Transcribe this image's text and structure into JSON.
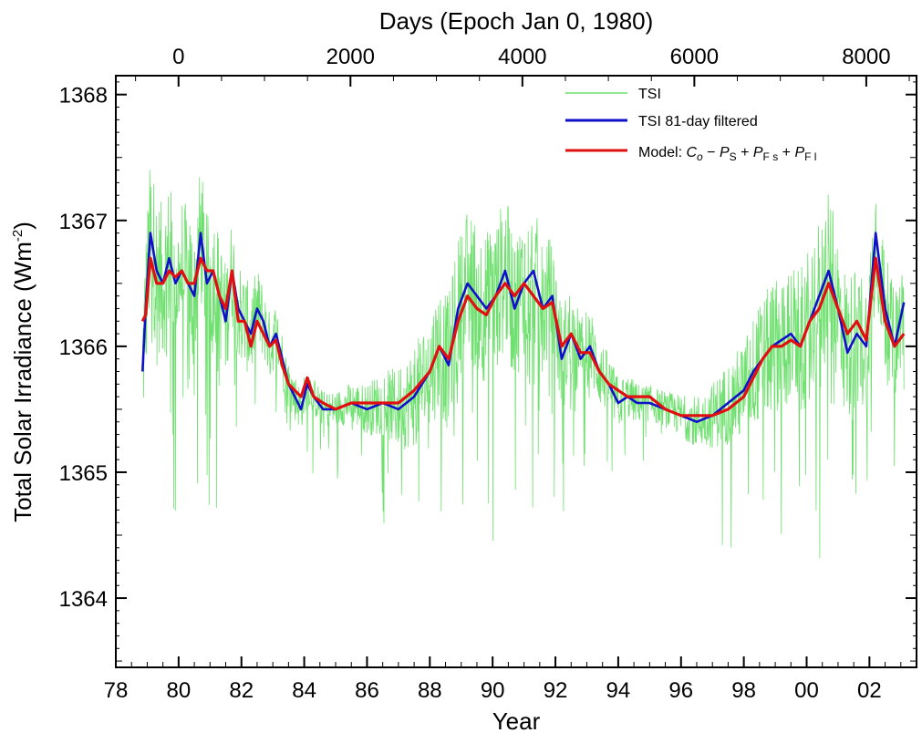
{
  "chart_data": {
    "type": "line",
    "xlabel": "Year",
    "x2label": "Days (Epoch Jan 0, 1980)",
    "ylabel": "Total Solar Irradiance (Wm",
    "ylabel_sup": "-2",
    "ylabel_close": ")",
    "xlim": [
      78.0,
      103.5
    ],
    "ylim": [
      1363.45,
      1368.15
    ],
    "x_ticks": [
      "78",
      "80",
      "82",
      "84",
      "86",
      "88",
      "90",
      "92",
      "94",
      "96",
      "98",
      "00",
      "02"
    ],
    "x_tick_values": [
      78,
      80,
      82,
      84,
      86,
      88,
      90,
      92,
      94,
      96,
      98,
      100,
      102
    ],
    "x2_ticks": [
      "0",
      "2000",
      "4000",
      "6000",
      "8000"
    ],
    "x2_tick_values": [
      0,
      2000,
      4000,
      6000,
      8000
    ],
    "y_ticks": [
      "1364",
      "1365",
      "1366",
      "1367",
      "1368"
    ],
    "y_tick_values": [
      1364,
      1365,
      1366,
      1367,
      1368
    ],
    "legend_position": "top-right",
    "colors": {
      "tsi": "#6fe06f",
      "filtered": "#1010c8",
      "model": "#e01010"
    },
    "legend": {
      "tsi": "TSI",
      "filtered": "TSI 81-day filtered",
      "model_prefix": "Model: ",
      "model_c": "C",
      "model_c_sub": "o",
      "model_minus": " − ",
      "model_p1": "P",
      "model_p1_sub": "S",
      "model_plus1": " + ",
      "model_p2": "P",
      "model_p2_sub": "F s",
      "model_plus2": " + ",
      "model_p3": "P",
      "model_p3_sub": "F l"
    },
    "series": [
      {
        "key": "filtered",
        "x": [
          78.85,
          78.95,
          79.1,
          79.3,
          79.5,
          79.7,
          79.9,
          80.1,
          80.3,
          80.5,
          80.7,
          80.9,
          81.1,
          81.3,
          81.5,
          81.7,
          81.9,
          82.1,
          82.3,
          82.5,
          82.7,
          82.9,
          83.1,
          83.3,
          83.5,
          83.7,
          83.9,
          84.1,
          84.3,
          84.6,
          85.0,
          85.5,
          86.0,
          86.5,
          87.0,
          87.5,
          88.0,
          88.3,
          88.6,
          88.9,
          89.2,
          89.5,
          89.8,
          90.1,
          90.4,
          90.7,
          91.0,
          91.3,
          91.6,
          91.9,
          92.2,
          92.5,
          92.8,
          93.1,
          93.4,
          93.7,
          94.0,
          94.3,
          94.6,
          95.0,
          95.5,
          96.0,
          96.5,
          97.0,
          97.5,
          98.0,
          98.3,
          98.6,
          98.9,
          99.2,
          99.5,
          99.8,
          100.1,
          100.4,
          100.7,
          101.0,
          101.3,
          101.6,
          101.9,
          102.2,
          102.5,
          102.8,
          103.1
        ],
        "y": [
          1365.8,
          1366.3,
          1366.9,
          1366.6,
          1366.5,
          1366.7,
          1366.5,
          1366.6,
          1366.5,
          1366.4,
          1366.9,
          1366.5,
          1366.6,
          1366.4,
          1366.2,
          1366.6,
          1366.3,
          1366.2,
          1366.1,
          1366.3,
          1366.2,
          1366.0,
          1366.1,
          1365.9,
          1365.7,
          1365.6,
          1365.5,
          1365.7,
          1365.6,
          1365.5,
          1365.5,
          1365.55,
          1365.5,
          1365.55,
          1365.5,
          1365.6,
          1365.8,
          1366.0,
          1365.85,
          1366.3,
          1366.5,
          1366.4,
          1366.3,
          1366.4,
          1366.6,
          1366.3,
          1366.5,
          1366.6,
          1366.3,
          1366.4,
          1365.9,
          1366.1,
          1365.9,
          1366.0,
          1365.8,
          1365.7,
          1365.55,
          1365.6,
          1365.55,
          1365.55,
          1365.5,
          1365.45,
          1365.4,
          1365.45,
          1365.55,
          1365.65,
          1365.8,
          1365.9,
          1366.0,
          1366.05,
          1366.1,
          1366.0,
          1366.2,
          1366.4,
          1366.6,
          1366.3,
          1365.95,
          1366.1,
          1366.0,
          1366.9,
          1366.3,
          1366.0,
          1366.35
        ]
      },
      {
        "key": "model",
        "x": [
          78.85,
          78.95,
          79.1,
          79.3,
          79.5,
          79.7,
          79.9,
          80.1,
          80.3,
          80.5,
          80.7,
          80.9,
          81.1,
          81.3,
          81.5,
          81.7,
          81.9,
          82.1,
          82.3,
          82.5,
          82.7,
          82.9,
          83.1,
          83.3,
          83.5,
          83.7,
          83.9,
          84.1,
          84.3,
          84.6,
          85.0,
          85.5,
          86.0,
          86.5,
          87.0,
          87.5,
          88.0,
          88.3,
          88.6,
          88.9,
          89.2,
          89.5,
          89.8,
          90.1,
          90.4,
          90.7,
          91.0,
          91.3,
          91.6,
          91.9,
          92.2,
          92.5,
          92.8,
          93.1,
          93.4,
          93.7,
          94.0,
          94.3,
          94.6,
          95.0,
          95.5,
          96.0,
          96.5,
          97.0,
          97.5,
          98.0,
          98.3,
          98.6,
          98.9,
          99.2,
          99.5,
          99.8,
          100.1,
          100.4,
          100.7,
          101.0,
          101.3,
          101.6,
          101.9,
          102.2,
          102.5,
          102.8,
          103.1
        ],
        "y": [
          1366.2,
          1366.25,
          1366.7,
          1366.5,
          1366.5,
          1366.6,
          1366.55,
          1366.6,
          1366.5,
          1366.5,
          1366.7,
          1366.6,
          1366.6,
          1366.4,
          1366.3,
          1366.6,
          1366.2,
          1366.2,
          1366.0,
          1366.2,
          1366.1,
          1366.0,
          1366.05,
          1365.85,
          1365.7,
          1365.65,
          1365.6,
          1365.75,
          1365.6,
          1365.55,
          1365.5,
          1365.55,
          1365.55,
          1365.55,
          1365.55,
          1365.65,
          1365.8,
          1366.0,
          1365.9,
          1366.2,
          1366.4,
          1366.3,
          1366.25,
          1366.4,
          1366.5,
          1366.4,
          1366.5,
          1366.4,
          1366.3,
          1366.35,
          1366.0,
          1366.1,
          1365.95,
          1365.95,
          1365.8,
          1365.7,
          1365.65,
          1365.6,
          1365.6,
          1365.6,
          1365.5,
          1365.45,
          1365.45,
          1365.45,
          1365.5,
          1365.6,
          1365.75,
          1365.9,
          1366.0,
          1366.0,
          1366.05,
          1366.0,
          1366.2,
          1366.3,
          1366.5,
          1366.3,
          1366.1,
          1366.2,
          1366.05,
          1366.7,
          1366.2,
          1366.0,
          1366.1
        ]
      }
    ]
  }
}
